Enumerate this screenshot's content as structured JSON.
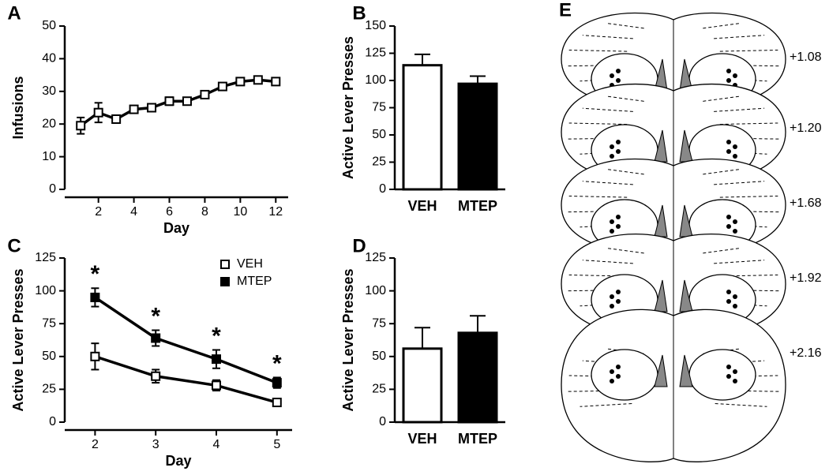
{
  "chart_data": [
    {
      "label": "A",
      "type": "line",
      "x_label": "Day",
      "y_label": "Infusions",
      "x": [
        1,
        2,
        3,
        4,
        5,
        6,
        7,
        8,
        9,
        10,
        11,
        12
      ],
      "values": [
        19.5,
        23.5,
        21.5,
        24.5,
        25,
        27,
        27,
        29,
        31.5,
        33,
        33.5,
        33
      ],
      "errors": [
        2.5,
        3,
        1,
        1,
        1,
        1.2,
        1,
        1,
        1,
        1,
        1,
        1
      ],
      "marker_fill": "#ffffff",
      "color": "#000000",
      "xlim": [
        0.1,
        12.7
      ],
      "xticks": [
        2,
        4,
        6,
        8,
        10,
        12
      ],
      "ylim": [
        0,
        50
      ],
      "yticks": [
        0,
        10,
        20,
        30,
        40,
        50
      ]
    },
    {
      "label": "B",
      "type": "bar",
      "y_label": "Active Lever  Presses",
      "categories": [
        "VEH",
        "MTEP"
      ],
      "values": [
        114,
        97
      ],
      "errors": [
        10,
        7
      ],
      "colors": [
        "#ffffff",
        "#000000"
      ],
      "ylim": [
        0,
        150
      ],
      "yticks": [
        0,
        25,
        50,
        75,
        100,
        125,
        150
      ]
    },
    {
      "label": "C",
      "type": "line",
      "x_label": "Day",
      "y_label": "Active Lever  Presses",
      "x": [
        2,
        3,
        4,
        5
      ],
      "series": [
        {
          "name": "VEH",
          "color": "#ffffff",
          "values": [
            50,
            35,
            28,
            15
          ],
          "errors": [
            10,
            5,
            4,
            2
          ]
        },
        {
          "name": "MTEP",
          "color": "#000000",
          "values": [
            95,
            64,
            48,
            30
          ],
          "errors": [
            7,
            6,
            7,
            4
          ]
        }
      ],
      "annotations": [
        "*",
        "*",
        "*",
        "*"
      ],
      "legend": "upper right",
      "xlim": [
        1.5,
        5.25
      ],
      "xticks": [
        2,
        3,
        4,
        5
      ],
      "ylim": [
        0,
        125
      ],
      "yticks": [
        0,
        25,
        50,
        75,
        100,
        125
      ]
    },
    {
      "label": "D",
      "type": "bar",
      "y_label": "Active Lever  Presses",
      "categories": [
        "VEH",
        "MTEP"
      ],
      "values": [
        56,
        68
      ],
      "errors": [
        16,
        13
      ],
      "colors": [
        "#ffffff",
        "#000000"
      ],
      "ylim": [
        0,
        125
      ],
      "yticks": [
        0,
        25,
        50,
        75,
        100,
        125
      ]
    }
  ],
  "atlas": {
    "label": "E",
    "sections": [
      "+1.08",
      "+1.20",
      "+1.68",
      "+1.92",
      "+2.16"
    ]
  }
}
